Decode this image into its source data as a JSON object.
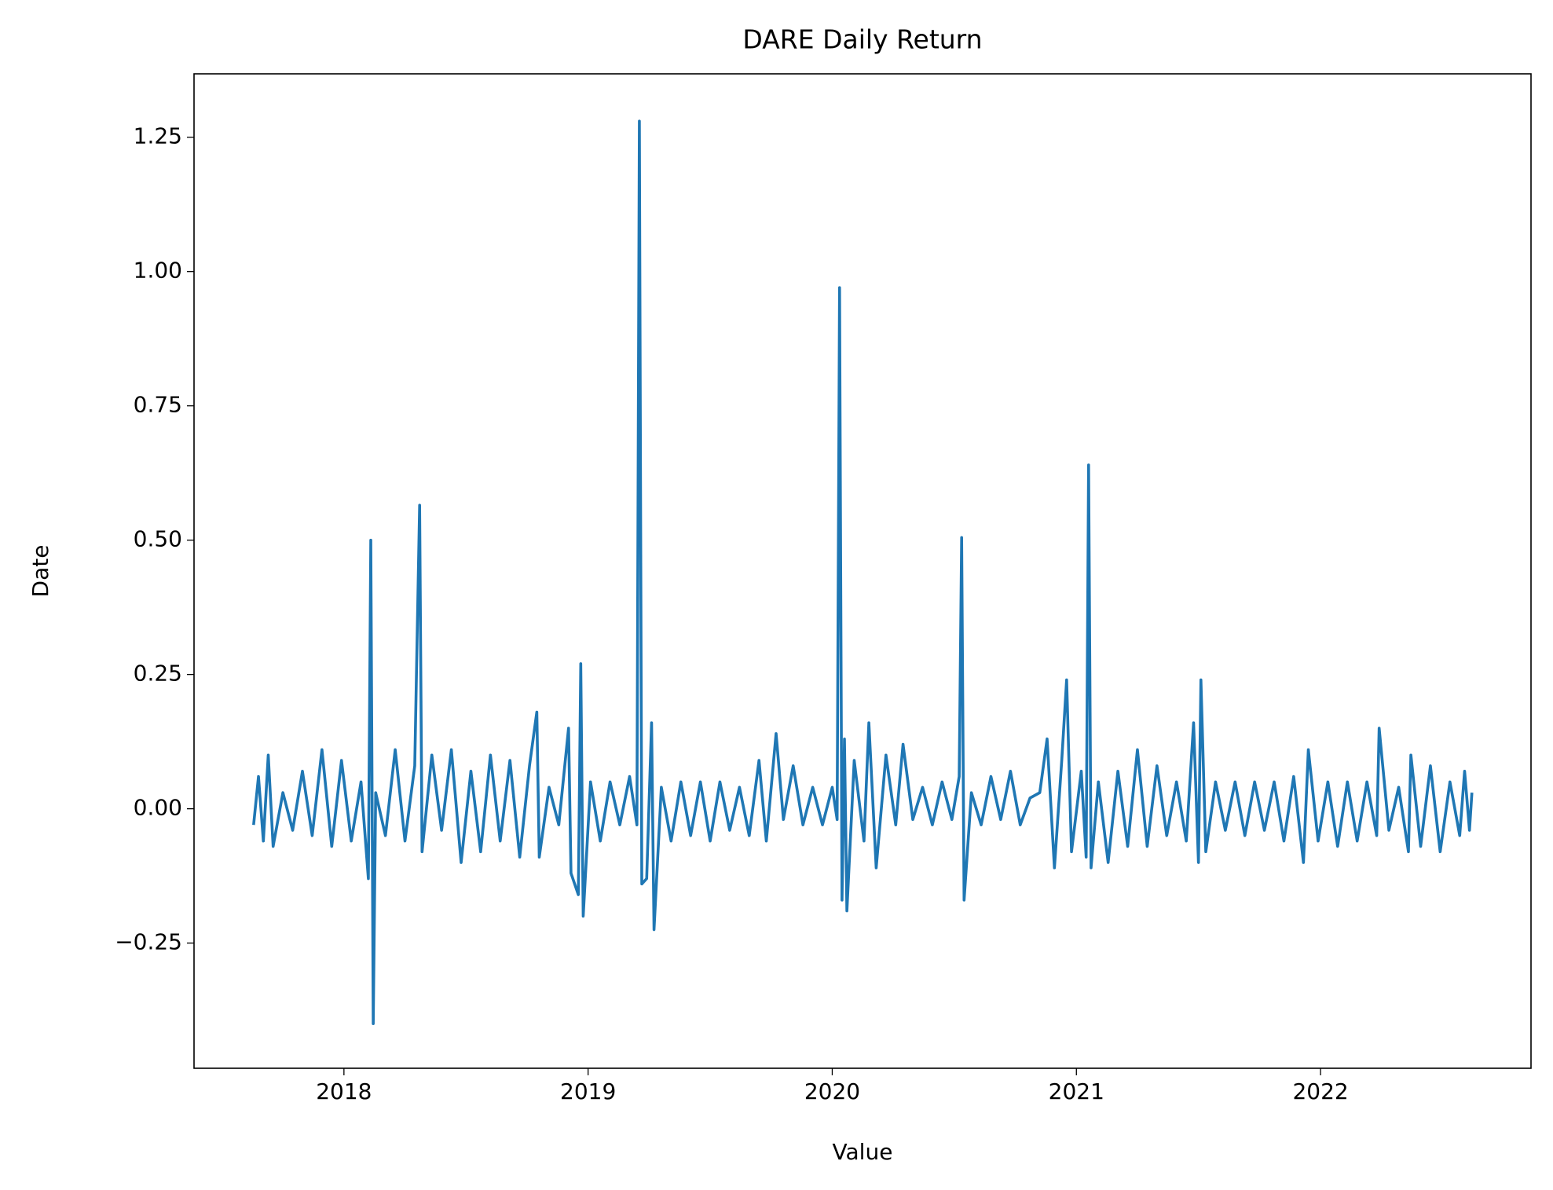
{
  "chart_data": {
    "type": "line",
    "title": "DARE Daily Return",
    "xlabel": "Value",
    "ylabel": "Date",
    "x": [
      2017.63,
      2017.65,
      2017.67,
      2017.69,
      2017.71,
      2017.75,
      2017.79,
      2017.83,
      2017.87,
      2017.91,
      2017.95,
      2017.99,
      2018.03,
      2018.07,
      2018.1,
      2018.11,
      2018.12,
      2018.13,
      2018.17,
      2018.21,
      2018.25,
      2018.29,
      2018.31,
      2018.32,
      2018.36,
      2018.4,
      2018.44,
      2018.48,
      2018.52,
      2018.56,
      2018.6,
      2018.64,
      2018.68,
      2018.72,
      2018.76,
      2018.79,
      2018.8,
      2018.84,
      2018.88,
      2018.92,
      2018.93,
      2018.96,
      2018.97,
      2018.98,
      2019.01,
      2019.05,
      2019.09,
      2019.13,
      2019.17,
      2019.2,
      2019.21,
      2019.22,
      2019.24,
      2019.26,
      2019.27,
      2019.3,
      2019.34,
      2019.38,
      2019.42,
      2019.46,
      2019.5,
      2019.54,
      2019.58,
      2019.62,
      2019.66,
      2019.7,
      2019.73,
      2019.77,
      2019.8,
      2019.84,
      2019.88,
      2019.92,
      2019.96,
      2020.0,
      2020.02,
      2020.03,
      2020.04,
      2020.05,
      2020.06,
      2020.09,
      2020.13,
      2020.15,
      2020.18,
      2020.22,
      2020.26,
      2020.29,
      2020.33,
      2020.37,
      2020.41,
      2020.45,
      2020.49,
      2020.52,
      2020.53,
      2020.54,
      2020.57,
      2020.61,
      2020.65,
      2020.69,
      2020.73,
      2020.77,
      2020.81,
      2020.85,
      2020.88,
      2020.91,
      2020.94,
      2020.96,
      2020.98,
      2021.02,
      2021.04,
      2021.05,
      2021.06,
      2021.09,
      2021.13,
      2021.17,
      2021.21,
      2021.25,
      2021.29,
      2021.33,
      2021.37,
      2021.41,
      2021.45,
      2021.48,
      2021.5,
      2021.51,
      2021.53,
      2021.57,
      2021.61,
      2021.65,
      2021.69,
      2021.73,
      2021.77,
      2021.81,
      2021.85,
      2021.89,
      2021.93,
      2021.95,
      2021.99,
      2022.03,
      2022.07,
      2022.11,
      2022.15,
      2022.19,
      2022.23,
      2022.24,
      2022.28,
      2022.32,
      2022.36,
      2022.37,
      2022.41,
      2022.45,
      2022.49,
      2022.53,
      2022.57,
      2022.59,
      2022.61,
      2022.62
    ],
    "series": [
      {
        "color": "#1f77b4",
        "values": [
          -0.03,
          0.06,
          -0.06,
          0.1,
          -0.07,
          0.03,
          -0.04,
          0.07,
          -0.05,
          0.11,
          -0.07,
          0.09,
          -0.06,
          0.05,
          -0.13,
          0.5,
          -0.4,
          0.03,
          -0.05,
          0.11,
          -0.06,
          0.08,
          0.565,
          -0.08,
          0.1,
          -0.04,
          0.11,
          -0.1,
          0.07,
          -0.08,
          0.1,
          -0.06,
          0.09,
          -0.09,
          0.08,
          0.18,
          -0.09,
          0.04,
          -0.03,
          0.15,
          -0.12,
          -0.16,
          0.27,
          -0.2,
          0.05,
          -0.06,
          0.05,
          -0.03,
          0.06,
          -0.03,
          1.28,
          -0.14,
          -0.13,
          0.16,
          -0.225,
          0.04,
          -0.06,
          0.05,
          -0.05,
          0.05,
          -0.06,
          0.05,
          -0.04,
          0.04,
          -0.05,
          0.09,
          -0.06,
          0.14,
          -0.02,
          0.08,
          -0.03,
          0.04,
          -0.03,
          0.04,
          -0.02,
          0.97,
          -0.17,
          0.13,
          -0.19,
          0.09,
          -0.06,
          0.16,
          -0.11,
          0.1,
          -0.03,
          0.12,
          -0.02,
          0.04,
          -0.03,
          0.05,
          -0.02,
          0.06,
          0.505,
          -0.17,
          0.03,
          -0.03,
          0.06,
          -0.02,
          0.07,
          -0.03,
          0.02,
          0.03,
          0.13,
          -0.11,
          0.09,
          0.24,
          -0.08,
          0.07,
          -0.09,
          0.64,
          -0.11,
          0.05,
          -0.1,
          0.07,
          -0.07,
          0.11,
          -0.07,
          0.08,
          -0.05,
          0.05,
          -0.06,
          0.16,
          -0.1,
          0.24,
          -0.08,
          0.05,
          -0.04,
          0.05,
          -0.05,
          0.05,
          -0.04,
          0.05,
          -0.06,
          0.06,
          -0.1,
          0.11,
          -0.06,
          0.05,
          -0.07,
          0.05,
          -0.06,
          0.05,
          -0.05,
          0.15,
          -0.04,
          0.04,
          -0.08,
          0.1,
          -0.07,
          0.08,
          -0.08,
          0.05,
          -0.05,
          0.07,
          -0.04,
          0.03
        ]
      }
    ],
    "xlim": [
      2017.386,
      2022.862
    ],
    "xticks": [
      2018,
      2019,
      2020,
      2021,
      2022
    ],
    "ylim": [
      -0.483,
      1.368
    ],
    "yticks": [
      {
        "value": -0.25,
        "label": "−0.25"
      },
      {
        "value": 0,
        "label": "0.00"
      },
      0.25,
      {
        "value": 0.5,
        "label": "0.50"
      },
      0.75,
      {
        "value": 1,
        "label": "1.00"
      },
      1.25
    ],
    "grid": false
  }
}
